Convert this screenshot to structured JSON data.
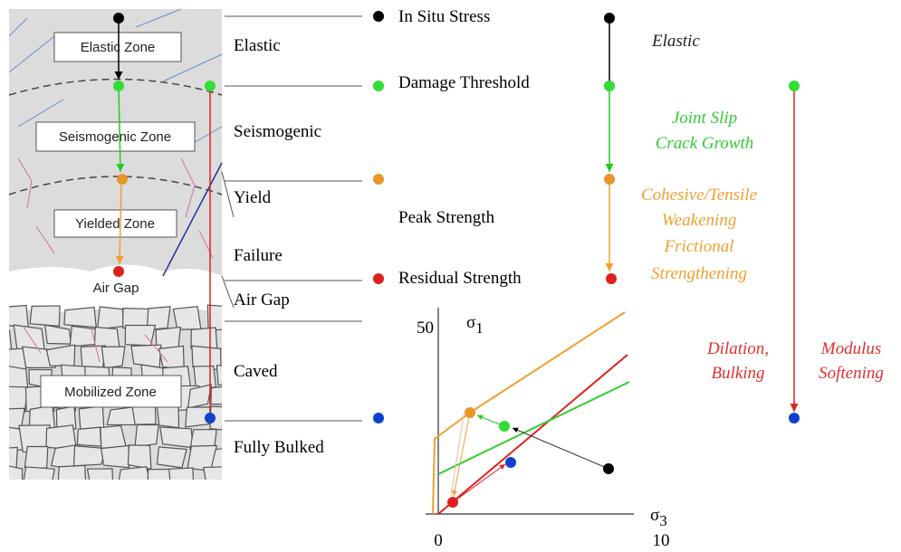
{
  "zones": [
    "Elastic Zone",
    "Seismogenic Zone",
    "Yielded Zone",
    "Air Gap",
    "Mobilized Zone"
  ],
  "stages": [
    "Elastic",
    "Seismogenic",
    "Yield",
    "Failure",
    "Air Gap",
    "Caved",
    "Fully Bulked"
  ],
  "states": [
    "In Situ Stress",
    "Damage Threshold",
    "Peak Strength",
    "Residual Strength"
  ],
  "processes": {
    "elastic": "Elastic",
    "slip": [
      "Joint Slip",
      "Crack Growth"
    ],
    "yield": [
      "Cohesive/Tensile",
      "Weakening",
      "Frictional",
      "Strengthening"
    ],
    "bulking": [
      "Dilation,",
      "Bulking"
    ],
    "softening": [
      "Modulus",
      "Softening"
    ]
  },
  "plot": {
    "y_axis": {
      "symbol": "σ",
      "subscript": "1"
    },
    "x_axis": {
      "symbol": "σ",
      "subscript": "3"
    },
    "y_tick": "50",
    "x_ticks": [
      "0",
      "10"
    ]
  }
}
